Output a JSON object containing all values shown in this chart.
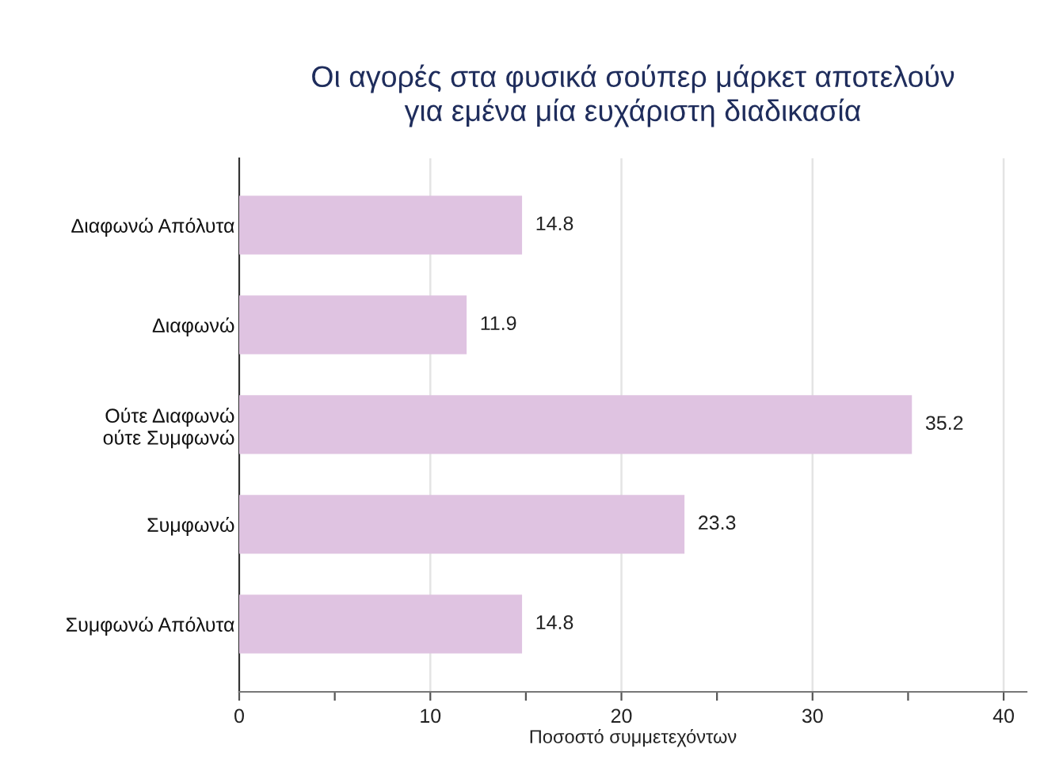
{
  "chart_data": {
    "type": "bar",
    "orientation": "horizontal",
    "title": "Οι αγορές στα φυσικά σούπερ μάρκετ αποτελούν\nγια εμένα μία ευχάριστη διαδικασία",
    "xlabel": "Ποσοστό συμμετεχόντων",
    "categories": [
      "Διαφωνώ Απόλυτα",
      "Διαφωνώ",
      "Ούτε Διαφωνώ\nούτε Συμφωνώ",
      "Συμφωνώ",
      "Συμφωνώ Απόλυτα"
    ],
    "values": [
      14.8,
      11.9,
      35.2,
      23.3,
      14.8
    ],
    "color": "#dfc3e1",
    "xlim": [
      0,
      41.2
    ],
    "xticks": [
      0,
      {
        "value": 5,
        "label": null
      },
      10,
      {
        "value": 15,
        "label": null
      },
      20,
      {
        "value": 25,
        "label": null
      },
      30,
      {
        "value": 35,
        "label": null
      },
      40
    ],
    "grid": "x",
    "data_labels": true,
    "legend": false
  }
}
